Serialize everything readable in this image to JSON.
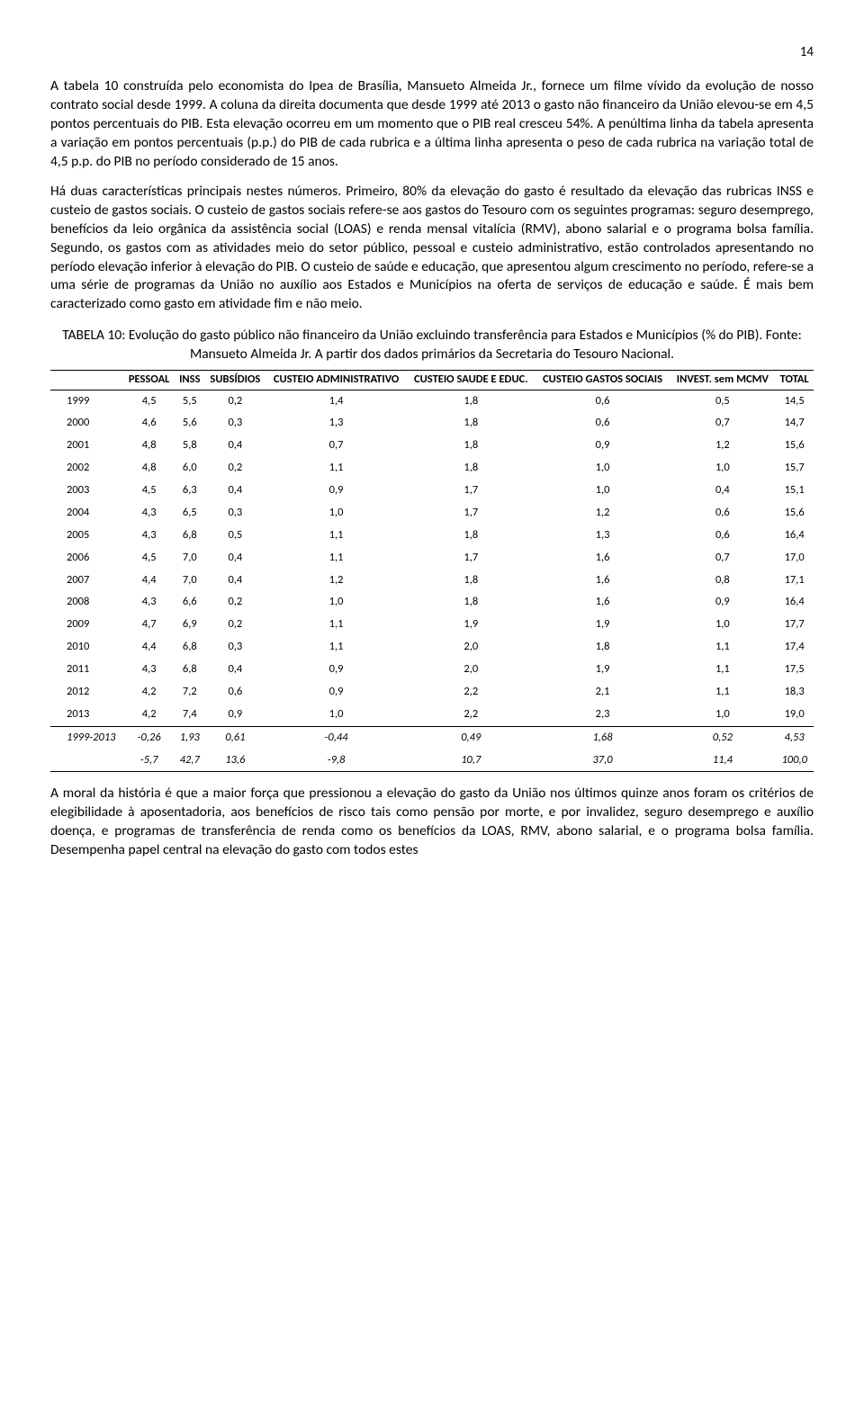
{
  "page_number": "14",
  "para1": "A tabela 10 construída pelo economista do Ipea de Brasília, Mansueto Almeida Jr., fornece um filme vívido da evolução de nosso contrato social desde 1999. A coluna da direita documenta que desde 1999 até 2013 o gasto não financeiro da União elevou-se em 4,5 pontos percentuais do PIB. Esta elevação ocorreu em um momento que o PIB real cresceu 54%. A penúltima linha da tabela apresenta a variação em pontos percentuais (p.p.) do PIB de cada rubrica e a última linha apresenta o peso de cada rubrica na variação total de 4,5 p.p. do PIB no período considerado de 15 anos.",
  "para2": "Há duas características principais nestes números. Primeiro, 80% da elevação do gasto é resultado da elevação das rubricas INSS e custeio de gastos sociais. O custeio de gastos sociais refere-se aos gastos do Tesouro com os seguintes programas: seguro desemprego, benefícios da leio orgânica da assistência social (LOAS) e renda mensal vitalícia (RMV), abono salarial e o programa bolsa família. Segundo, os gastos com as atividades meio do setor público, pessoal e custeio administrativo, estão controlados apresentando no período elevação inferior à elevação do PIB. O custeio de saúde e educação, que apresentou algum crescimento no período, refere-se a uma série de programas da União no auxílio aos Estados e Municípios na oferta de serviços de educação e saúde. É mais bem caracterizado como gasto em atividade fim e não meio.",
  "table_title": "TABELA 10: Evolução do gasto público não financeiro da União excluindo transferência para Estados e Municípios (% do PIB). Fonte: Mansueto Almeida Jr. A partir dos dados primários da Secretaria do Tesouro Nacional.",
  "columns": [
    "",
    "PESSOAL",
    "INSS",
    "SUBSÍDIOS",
    "CUSTEIO ADMINISTRATIVO",
    "CUSTEIO SAUDE E EDUC.",
    "CUSTEIO GASTOS SOCIAIS",
    "INVEST. sem MCMV",
    "TOTAL"
  ],
  "rows": [
    [
      "1999",
      "4,5",
      "5,5",
      "0,2",
      "1,4",
      "1,8",
      "0,6",
      "0,5",
      "14,5"
    ],
    [
      "2000",
      "4,6",
      "5,6",
      "0,3",
      "1,3",
      "1,8",
      "0,6",
      "0,7",
      "14,7"
    ],
    [
      "2001",
      "4,8",
      "5,8",
      "0,4",
      "0,7",
      "1,8",
      "0,9",
      "1,2",
      "15,6"
    ],
    [
      "2002",
      "4,8",
      "6,0",
      "0,2",
      "1,1",
      "1,8",
      "1,0",
      "1,0",
      "15,7"
    ],
    [
      "2003",
      "4,5",
      "6,3",
      "0,4",
      "0,9",
      "1,7",
      "1,0",
      "0,4",
      "15,1"
    ],
    [
      "2004",
      "4,3",
      "6,5",
      "0,3",
      "1,0",
      "1,7",
      "1,2",
      "0,6",
      "15,6"
    ],
    [
      "2005",
      "4,3",
      "6,8",
      "0,5",
      "1,1",
      "1,8",
      "1,3",
      "0,6",
      "16,4"
    ],
    [
      "2006",
      "4,5",
      "7,0",
      "0,4",
      "1,1",
      "1,7",
      "1,6",
      "0,7",
      "17,0"
    ],
    [
      "2007",
      "4,4",
      "7,0",
      "0,4",
      "1,2",
      "1,8",
      "1,6",
      "0,8",
      "17,1"
    ],
    [
      "2008",
      "4,3",
      "6,6",
      "0,2",
      "1,0",
      "1,8",
      "1,6",
      "0,9",
      "16,4"
    ],
    [
      "2009",
      "4,7",
      "6,9",
      "0,2",
      "1,1",
      "1,9",
      "1,9",
      "1,0",
      "17,7"
    ],
    [
      "2010",
      "4,4",
      "6,8",
      "0,3",
      "1,1",
      "2,0",
      "1,8",
      "1,1",
      "17,4"
    ],
    [
      "2011",
      "4,3",
      "6,8",
      "0,4",
      "0,9",
      "2,0",
      "1,9",
      "1,1",
      "17,5"
    ],
    [
      "2012",
      "4,2",
      "7,2",
      "0,6",
      "0,9",
      "2,2",
      "2,1",
      "1,1",
      "18,3"
    ],
    [
      "2013",
      "4,2",
      "7,4",
      "0,9",
      "1,0",
      "2,2",
      "2,3",
      "1,0",
      "19,0"
    ]
  ],
  "summary_rows": [
    [
      "1999-2013",
      "-0,26",
      "1,93",
      "0,61",
      "-0,44",
      "0,49",
      "1,68",
      "0,52",
      "4,53"
    ],
    [
      "",
      "-5,7",
      "42,7",
      "13,6",
      "-9,8",
      "10,7",
      "37,0",
      "11,4",
      "100,0"
    ]
  ],
  "para3": "A moral da história é que a maior força que pressionou a elevação do gasto da União nos últimos quinze anos foram os critérios de elegibilidade à aposentadoria, aos benefícios de risco tais como pensão por morte, e por invalidez, seguro desemprego e auxílio doença, e programas de transferência de renda como os benefícios da LOAS, RMV, abono salarial, e o programa bolsa família. Desempenha papel central na elevação do gasto com todos estes"
}
